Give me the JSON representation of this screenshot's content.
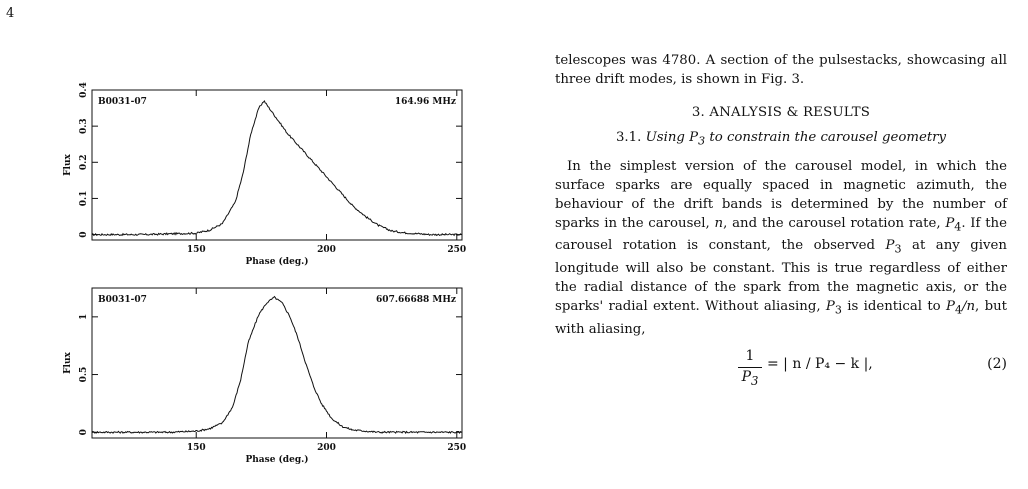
{
  "page": {
    "number": "4"
  },
  "figure": {
    "panels": [
      {
        "source_label": "B0031-07",
        "frequency_label": "164.96 MHz",
        "ylabel": "Flux",
        "xlabel": "Phase (deg.)",
        "xlim": [
          110,
          252
        ],
        "ylim": [
          -0.015,
          0.4
        ],
        "xticks": [
          "150",
          "200",
          "250"
        ],
        "yticks": [
          "0",
          "0.1",
          "0.2",
          "0.3",
          "0.4"
        ],
        "ytick_values": [
          0,
          0.1,
          0.2,
          0.3,
          0.4
        ],
        "xtick_values": [
          150,
          200,
          250
        ],
        "peak_phase": 176,
        "peak_flux": 0.37
      },
      {
        "source_label": "B0031-07",
        "frequency_label": "607.66688 MHz",
        "ylabel": "Flux",
        "xlabel": "Phase (deg.)",
        "xlim": [
          110,
          252
        ],
        "ylim": [
          -0.05,
          1.25
        ],
        "xticks": [
          "150",
          "200",
          "250"
        ],
        "yticks": [
          "0",
          "0.5",
          "1"
        ],
        "ytick_values": [
          0,
          0.5,
          1
        ],
        "xtick_values": [
          150,
          200,
          250
        ],
        "peak_phase": 180,
        "peak_flux": 1.17
      }
    ]
  },
  "chart_data": [
    {
      "type": "line",
      "title": "",
      "xlabel": "Phase (deg.)",
      "ylabel": "Flux",
      "annotations": [
        "B0031-07",
        "164.96 MHz"
      ],
      "xlim": [
        110,
        252
      ],
      "ylim": [
        -0.015,
        0.4
      ],
      "x": [
        110,
        120,
        130,
        140,
        150,
        155,
        160,
        165,
        168,
        171,
        174,
        176,
        178,
        181,
        185,
        190,
        195,
        200,
        205,
        210,
        215,
        220,
        225,
        230,
        240,
        252
      ],
      "y": [
        0.0,
        0.0,
        0.0,
        0.002,
        0.004,
        0.012,
        0.03,
        0.09,
        0.17,
        0.28,
        0.35,
        0.37,
        0.35,
        0.32,
        0.28,
        0.24,
        0.2,
        0.16,
        0.12,
        0.08,
        0.05,
        0.025,
        0.01,
        0.005,
        0.0,
        0.0
      ]
    },
    {
      "type": "line",
      "title": "",
      "xlabel": "Phase (deg.)",
      "ylabel": "Flux",
      "annotations": [
        "B0031-07",
        "607.66688 MHz"
      ],
      "xlim": [
        110,
        252
      ],
      "ylim": [
        -0.05,
        1.25
      ],
      "x": [
        110,
        120,
        130,
        140,
        150,
        155,
        160,
        164,
        167,
        170,
        174,
        177,
        180,
        183,
        186,
        189,
        192,
        195,
        198,
        202,
        206,
        210,
        220,
        230,
        240,
        252
      ],
      "y": [
        0.0,
        0.0,
        0.0,
        0.0,
        0.01,
        0.03,
        0.08,
        0.22,
        0.45,
        0.78,
        1.02,
        1.12,
        1.17,
        1.12,
        1.0,
        0.82,
        0.6,
        0.4,
        0.25,
        0.12,
        0.05,
        0.02,
        0.0,
        0.0,
        0.0,
        0.0
      ]
    }
  ],
  "text": {
    "continuation": "telescopes was 4780. A section of the pulsestacks, showcasing all three drift modes, is shown in Fig. 3.",
    "section_heading": "3. ANALYSIS & RESULTS",
    "subsection_number": "3.1.",
    "subsection_title_prefix": "Using ",
    "subsection_title_sym": "P",
    "subsection_title_sub": "3",
    "subsection_title_suffix": " to constrain the carousel geometry",
    "para_part1": "In the simplest version of the carousel model, in which the surface sparks are equally spaced in magnetic azimuth, the behaviour of the drift bands is determined by the number of sparks in the carousel, ",
    "para_n": "n",
    "para_part2": ", and the carousel rotation rate, ",
    "para_P4": "P",
    "para_P4_sub": "4",
    "para_part3": ". If the carousel rotation is constant, the observed ",
    "para_P3": "P",
    "para_P3_sub": "3",
    "para_part4": " at any given longitude will also be constant. This is true regardless of either the radial distance of the spark from the magnetic axis, or the sparks' radial extent. Without aliasing, ",
    "para_P3b": "P",
    "para_P3b_sub": "3",
    "para_part5": " is identical to ",
    "para_P4n": "P",
    "para_P4n_sub": "4",
    "para_part6": "/n",
    "para_part7": ", but with aliasing,",
    "eq_one": "1",
    "eq_den": "P",
    "eq_den_sub": "3",
    "eq_rhs": "= | n / P₄ − k |,",
    "eq_number": "(2)"
  }
}
